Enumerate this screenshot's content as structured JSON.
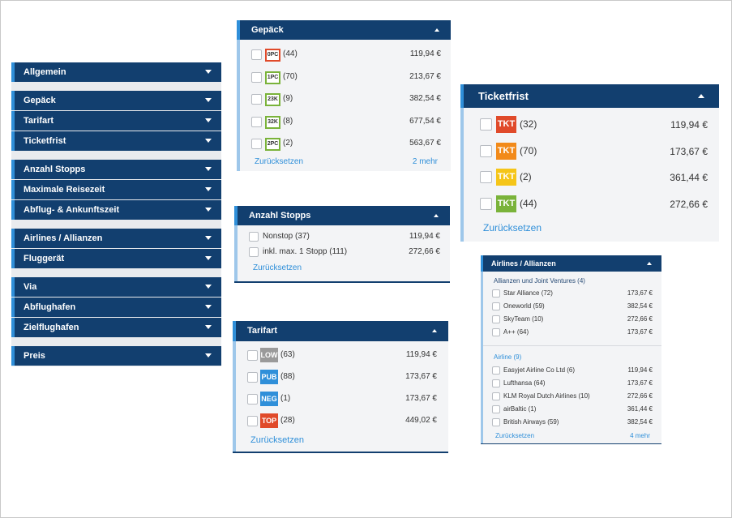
{
  "sidebar": {
    "items": [
      {
        "label": "Allgemein"
      },
      {
        "label": "Gepäck"
      },
      {
        "label": "Tarifart"
      },
      {
        "label": "Ticketfrist"
      },
      {
        "label": "Anzahl Stopps"
      },
      {
        "label": "Maximale Reisezeit"
      },
      {
        "label": "Abflug- & Ankunftszeit"
      },
      {
        "label": "Airlines / Allianzen"
      },
      {
        "label": "Fluggerät"
      },
      {
        "label": "Via"
      },
      {
        "label": "Abflughafen"
      },
      {
        "label": "Zielflughafen"
      },
      {
        "label": "Preis"
      }
    ]
  },
  "gepaeck": {
    "title": "Gepäck",
    "rows": [
      {
        "badge": "0PC",
        "color": "#e04a2a",
        "count": "(44)",
        "price": "119,94 €"
      },
      {
        "badge": "1PC",
        "color": "#7ab33a",
        "count": "(70)",
        "price": "213,67 €"
      },
      {
        "badge": "23K",
        "color": "#7ab33a",
        "count": "(9)",
        "price": "382,54 €"
      },
      {
        "badge": "32K",
        "color": "#7ab33a",
        "count": "(8)",
        "price": "677,54 €"
      },
      {
        "badge": "2PC",
        "color": "#7ab33a",
        "count": "(2)",
        "price": "563,67 €"
      }
    ],
    "reset": "Zurücksetzen",
    "more": "2 mehr"
  },
  "stopps": {
    "title": "Anzahl Stopps",
    "rows": [
      {
        "label": "Nonstop (37)",
        "price": "119,94 €"
      },
      {
        "label": "inkl. max. 1 Stopp (111)",
        "price": "272,66 €"
      }
    ],
    "reset": "Zurücksetzen"
  },
  "tarifart": {
    "title": "Tarifart",
    "rows": [
      {
        "tag": "LOW",
        "color": "#9a9a9a",
        "count": "(63)",
        "price": "119,94 €"
      },
      {
        "tag": "PUB",
        "color": "#2f8fd9",
        "count": "(88)",
        "price": "173,67 €"
      },
      {
        "tag": "NEG",
        "color": "#2f8fd9",
        "count": "(1)",
        "price": "173,67 €"
      },
      {
        "tag": "TOP",
        "color": "#e04a2a",
        "count": "(28)",
        "price": "449,02 €"
      }
    ],
    "reset": "Zurücksetzen"
  },
  "ticketfrist": {
    "title": "Ticketfrist",
    "rows": [
      {
        "tag": "TKT",
        "color": "#e04a2a",
        "count": "(32)",
        "price": "119,94 €"
      },
      {
        "tag": "TKT",
        "color": "#f28a1a",
        "count": "(70)",
        "price": "173,67 €"
      },
      {
        "tag": "TKT",
        "color": "#f5c518",
        "count": "(2)",
        "price": "361,44 €"
      },
      {
        "tag": "TKT",
        "color": "#7ab33a",
        "count": "(44)",
        "price": "272,66 €"
      }
    ],
    "reset": "Zurücksetzen"
  },
  "airlines": {
    "title": "Airlines / Allianzen",
    "alliances_heading": "Allianzen und Joint Ventures (4)",
    "alliances": [
      {
        "label": "Star Alliance (72)",
        "price": "173,67 €"
      },
      {
        "label": "Oneworld (59)",
        "price": "382,54 €"
      },
      {
        "label": "SkyTeam (10)",
        "price": "272,66 €"
      },
      {
        "label": "A++ (64)",
        "price": "173,67 €"
      }
    ],
    "airline_heading": "Airline (9)",
    "airline_rows": [
      {
        "label": "Easyjet Airline Co Ltd (6)",
        "price": "119,94 €"
      },
      {
        "label": "Lufthansa (64)",
        "price": "173,67 €"
      },
      {
        "label": "KLM Royal Dutch Airlines (10)",
        "price": "272,66 €"
      },
      {
        "label": "airBaltic (1)",
        "price": "361,44 €"
      },
      {
        "label": "British Airways (59)",
        "price": "382,54 €"
      }
    ],
    "reset": "Zurücksetzen",
    "more": "4 mehr"
  }
}
